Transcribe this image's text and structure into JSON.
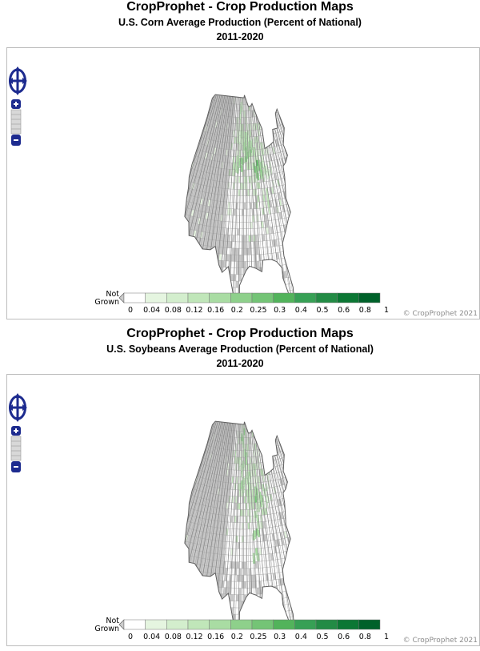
{
  "maps": [
    {
      "title": "CropProphet - Crop Production Maps",
      "subtitle": "U.S. Corn Average Production (Percent of National)",
      "years": "2011-2020",
      "crop": "corn",
      "hotspots": [
        {
          "lon": -95.6,
          "lat": 43.0,
          "level": 4
        },
        {
          "lon": -93.8,
          "lat": 42.1,
          "level": 6
        },
        {
          "lon": -92.3,
          "lat": 42.7,
          "level": 5
        },
        {
          "lon": -93.9,
          "lat": 44.0,
          "level": 4
        },
        {
          "lon": -89.4,
          "lat": 40.6,
          "level": 7
        },
        {
          "lon": -88.1,
          "lat": 40.1,
          "level": 6
        },
        {
          "lon": -86.6,
          "lat": 40.4,
          "level": 5
        },
        {
          "lon": -97.8,
          "lat": 41.2,
          "level": 6
        },
        {
          "lon": -100.5,
          "lat": 41.0,
          "level": 4
        },
        {
          "lon": -97.9,
          "lat": 44.3,
          "level": 3
        },
        {
          "lon": -98.0,
          "lat": 47.0,
          "level": 2
        },
        {
          "lon": -90.6,
          "lat": 42.9,
          "level": 3
        },
        {
          "lon": -84.0,
          "lat": 40.3,
          "level": 2
        }
      ]
    },
    {
      "title": "CropProphet - Crop Production Maps",
      "subtitle": "U.S. Soybeans Average Production (Percent of National)",
      "years": "2011-2020",
      "crop": "soybeans",
      "hotspots": [
        {
          "lon": -96.6,
          "lat": 47.0,
          "level": 5
        },
        {
          "lon": -95.0,
          "lat": 44.6,
          "level": 5
        },
        {
          "lon": -93.5,
          "lat": 42.1,
          "level": 4
        },
        {
          "lon": -96.9,
          "lat": 41.4,
          "level": 4
        },
        {
          "lon": -89.3,
          "lat": 40.3,
          "level": 6
        },
        {
          "lon": -87.2,
          "lat": 39.9,
          "level": 4
        },
        {
          "lon": -90.7,
          "lat": 35.6,
          "level": 5
        },
        {
          "lon": -90.9,
          "lat": 33.4,
          "level": 4
        },
        {
          "lon": -89.7,
          "lat": 38.6,
          "level": 3
        },
        {
          "lon": -83.9,
          "lat": 40.6,
          "level": 3
        },
        {
          "lon": -97.5,
          "lat": 43.7,
          "level": 3
        }
      ]
    }
  ],
  "legend": {
    "not_grown_line1": "Not",
    "not_grown_line2": "Grown",
    "ticks": [
      "0",
      "0.04",
      "0.08",
      "0.12",
      "0.16",
      "0.2",
      "0.25",
      "0.3",
      "0.4",
      "0.5",
      "0.6",
      "0.8",
      "1"
    ],
    "colors": [
      "#ffffff",
      "#e5f5e0",
      "#d3eecd",
      "#c0e6b9",
      "#a9dca3",
      "#8ed08b",
      "#74c476",
      "#52b35b",
      "#37a055",
      "#238b45",
      "#0c7734",
      "#00612a"
    ],
    "not_grown_color": "#cccccc"
  },
  "copyright": "© CropProphet 2021",
  "colors": {
    "not_grown": "#c8c8c8",
    "grown_base": "#ffffff",
    "border": "#6a6a6a",
    "nav": "#1d2b8f"
  }
}
